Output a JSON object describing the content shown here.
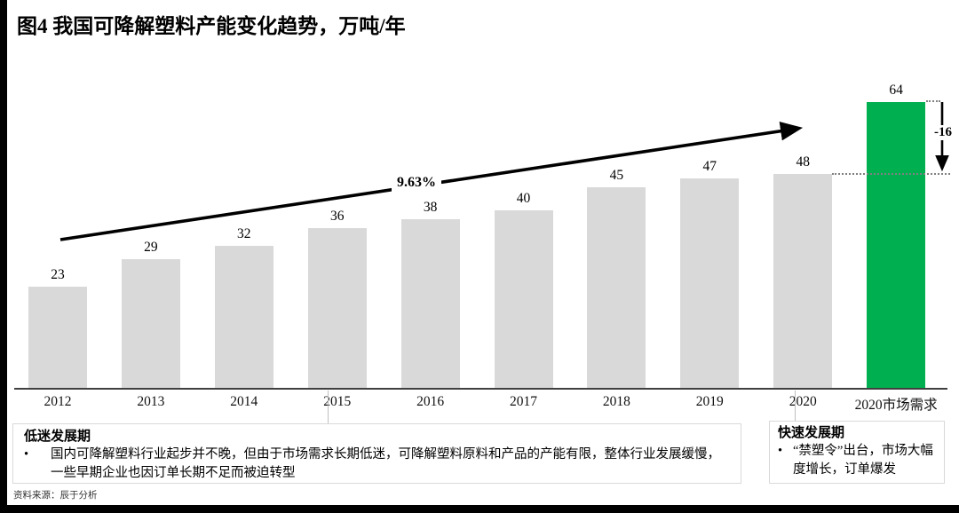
{
  "page": {
    "title": "图4 我国可降解塑料产能变化趋势，万吨/年",
    "source": "资料来源：辰于分析"
  },
  "chart_data": {
    "type": "bar",
    "title": "我国可降解塑料产能变化趋势",
    "unit": "万吨/年",
    "categories": [
      "2012",
      "2013",
      "2014",
      "2015",
      "2016",
      "2017",
      "2018",
      "2019",
      "2020",
      "2020市场需求"
    ],
    "values": [
      23,
      29,
      32,
      36,
      38,
      40,
      45,
      47,
      48,
      64
    ],
    "highlight_index": 9,
    "bar_color": "#d9d9d9",
    "highlight_color": "#00b050",
    "ylim": [
      0,
      70
    ],
    "grid": false,
    "legend": "none",
    "annotations": {
      "cagr_label": "9.63%",
      "gap_label": "-16"
    }
  },
  "boxes": {
    "bullet_marker": "•",
    "left": {
      "title": "低迷发展期",
      "bullet": "国内可降解塑料行业起步并不晚，但由于市场需求长期低迷，可降解塑料原料和产品的产能有限，整体行业发展缓慢，一些早期企业也因订单长期不足而被迫转型"
    },
    "right": {
      "title": "快速发展期",
      "bullet": "“禁塑令”出台，市场大幅度增长，订单爆发"
    }
  }
}
